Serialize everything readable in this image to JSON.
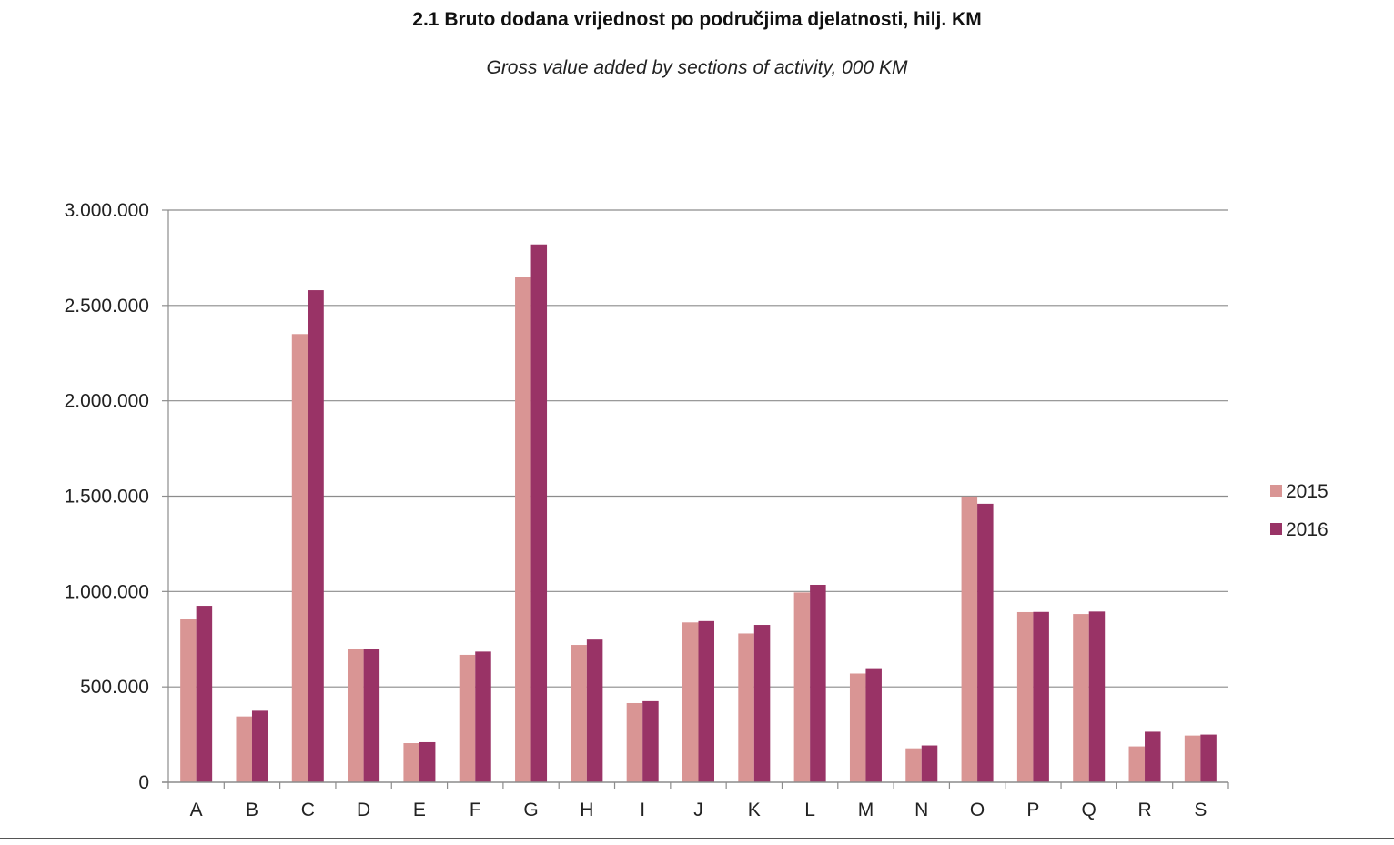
{
  "chart_data": {
    "type": "bar",
    "title": "2.1 Bruto dodana vrijednost po područjima djelatnosti, hilj. KM",
    "subtitle": "Gross value added by sections of activity, 000 KM",
    "categories": [
      "A",
      "B",
      "C",
      "D",
      "E",
      "F",
      "G",
      "H",
      "I",
      "J",
      "K",
      "L",
      "M",
      "N",
      "O",
      "P",
      "Q",
      "R",
      "S"
    ],
    "series": [
      {
        "name": "2015",
        "color": "#d99594",
        "values": [
          855000,
          345000,
          2350000,
          700000,
          205000,
          668000,
          2650000,
          720000,
          415000,
          838000,
          780000,
          995000,
          570000,
          178000,
          1498000,
          892000,
          882000,
          188000,
          245000
        ]
      },
      {
        "name": "2016",
        "color": "#993366",
        "values": [
          925000,
          375000,
          2580000,
          700000,
          210000,
          685000,
          2820000,
          748000,
          425000,
          845000,
          825000,
          1035000,
          598000,
          193000,
          1460000,
          893000,
          895000,
          265000,
          250000
        ]
      }
    ],
    "ylim": [
      0,
      3000000
    ],
    "yticks": [
      0,
      500000,
      1000000,
      1500000,
      2000000,
      2500000,
      3000000
    ],
    "ytick_labels": [
      "0",
      "500.000",
      "1.000.000",
      "1.500.000",
      "2.000.000",
      "2.500.000",
      "3.000.000"
    ],
    "grid": true,
    "legend_position": "right",
    "legend": [
      "2015",
      "2016"
    ]
  }
}
